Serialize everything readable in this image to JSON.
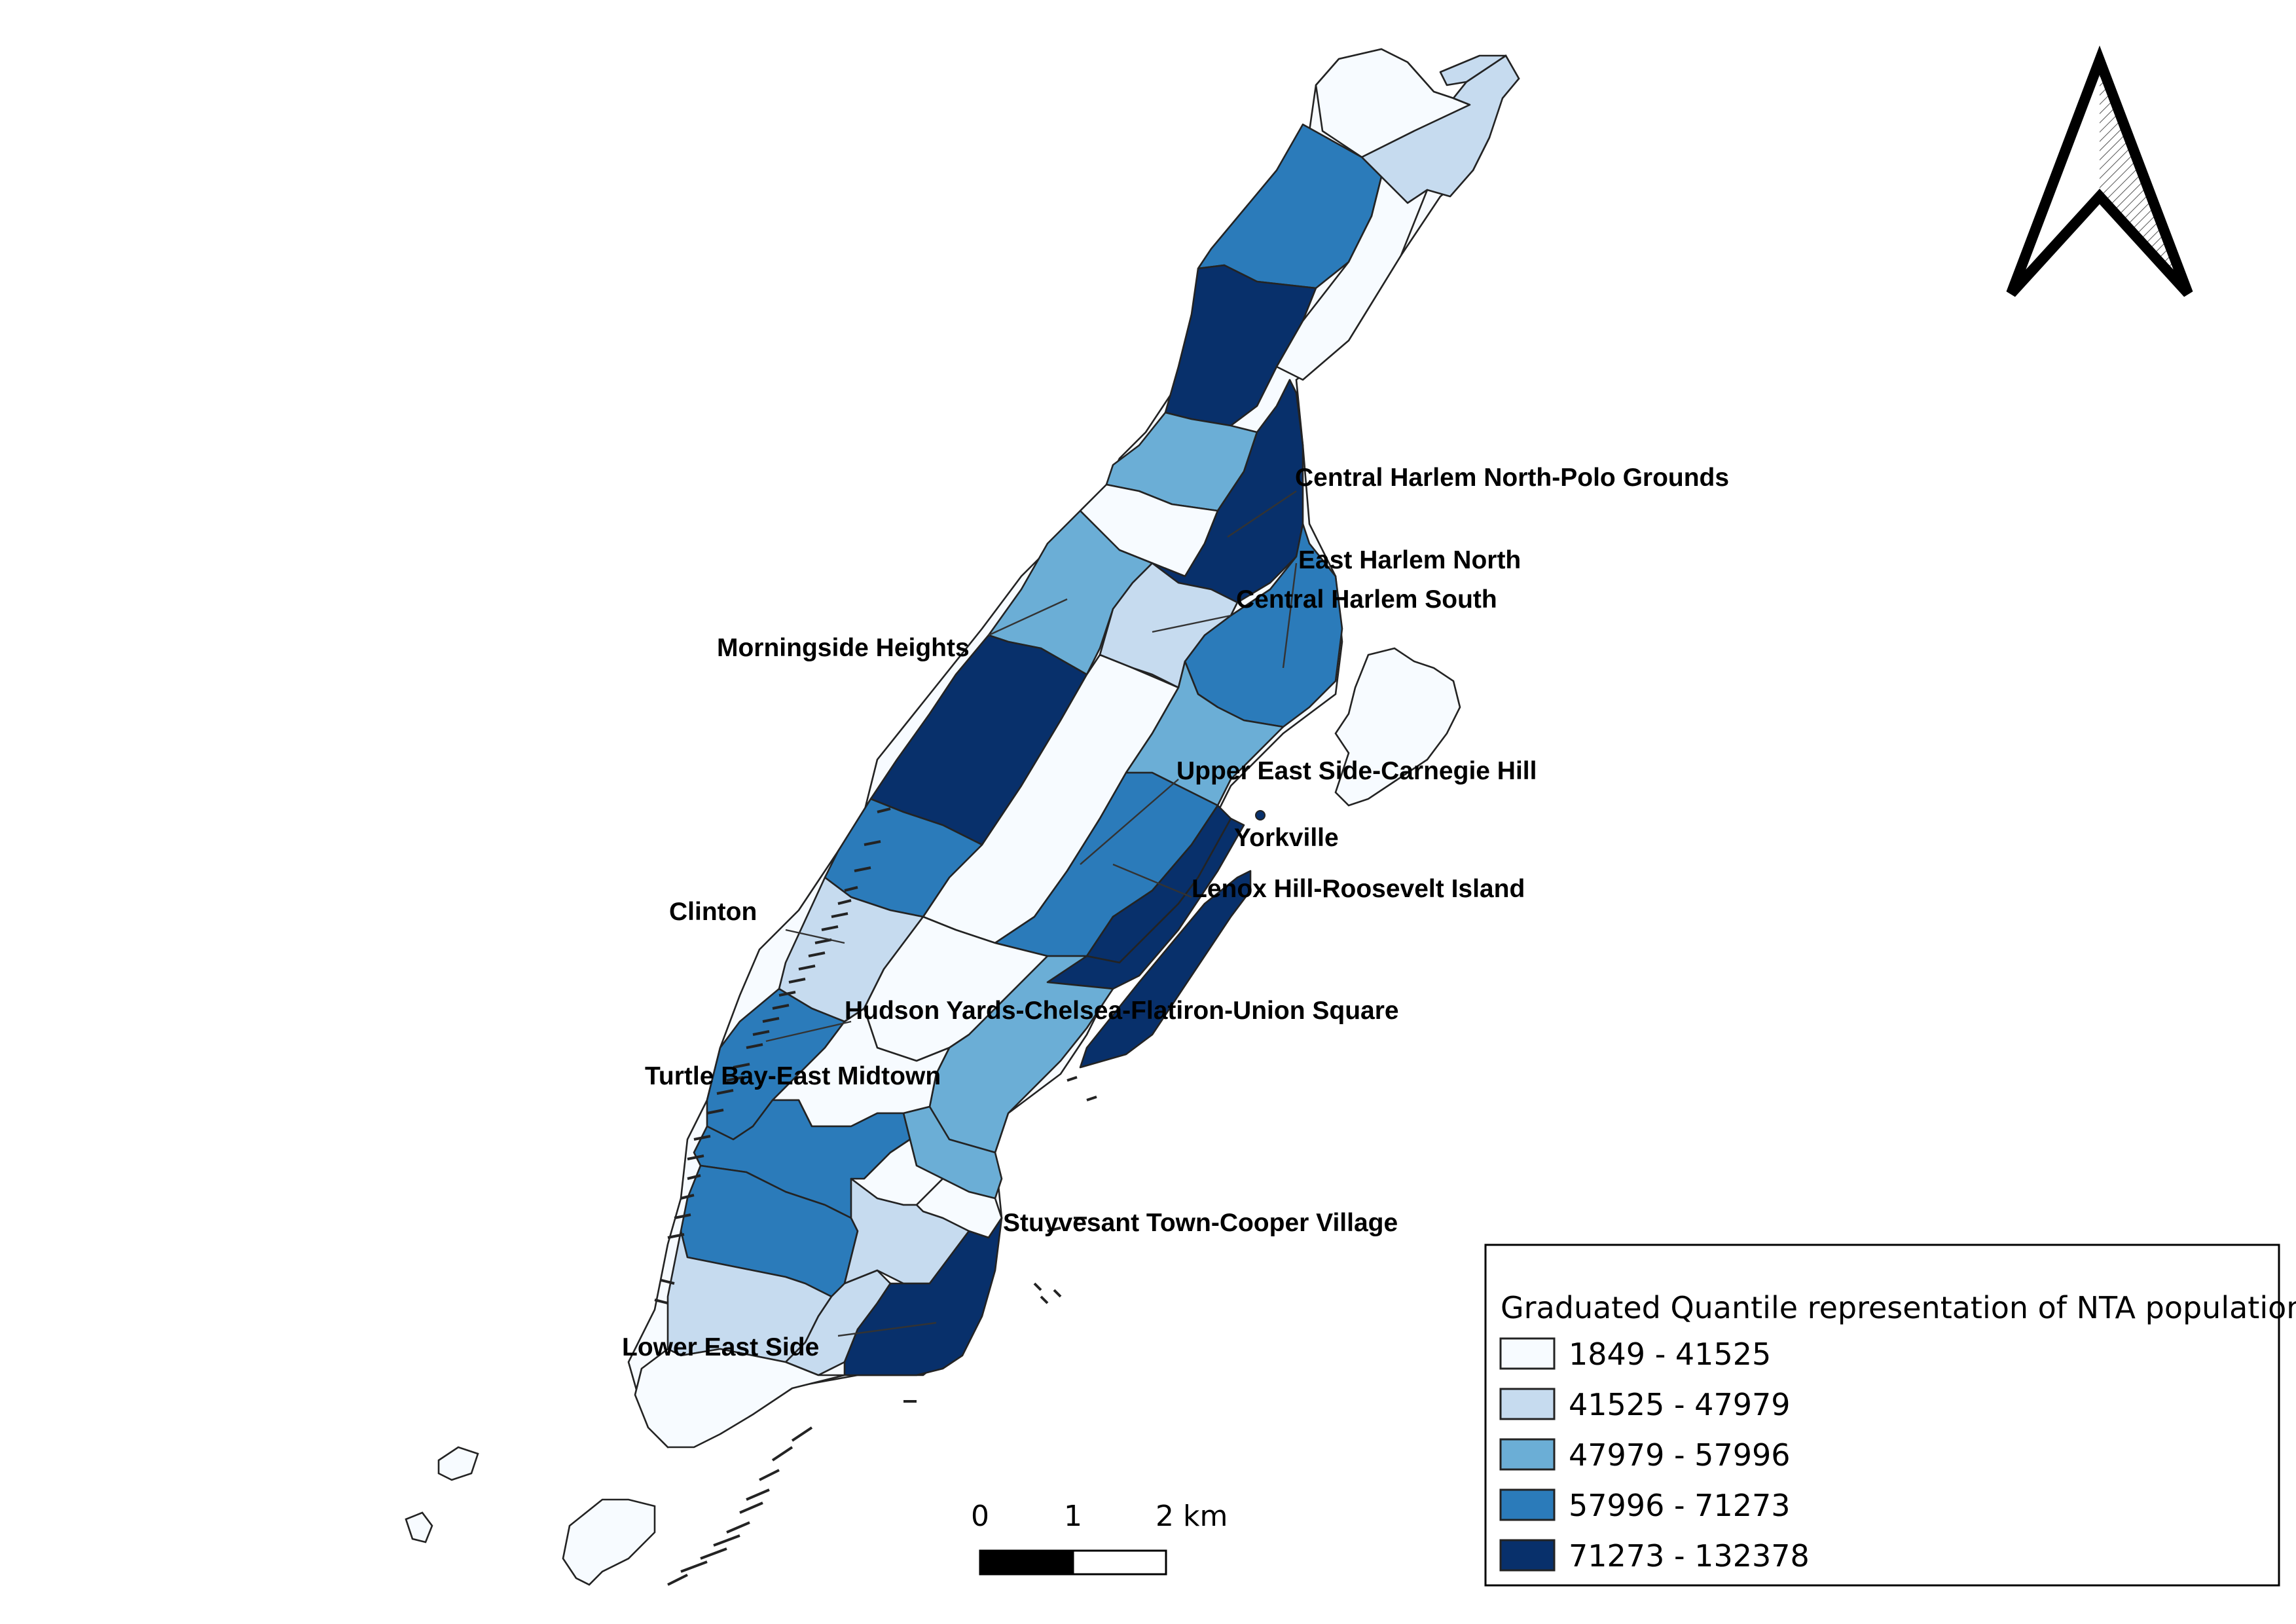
{
  "map": {
    "classes": [
      {
        "label": "1849 - 41525",
        "color": "#f7fbff"
      },
      {
        "label": "41525 - 47979",
        "color": "#c6dbef"
      },
      {
        "label": "47979 - 57996",
        "color": "#6baed6"
      },
      {
        "label": "57996 - 71273",
        "color": "#2b7bba"
      },
      {
        "label": "71273 - 132378",
        "color": "#08306b"
      }
    ],
    "labels": {
      "central_harlem_north": "Central Harlem North-Polo Grounds",
      "east_harlem_north": "East Harlem North",
      "central_harlem_south": "Central Harlem South",
      "morningside_heights": "Morningside Heights",
      "upper_east_side": "Upper East Side-Carnegie Hill",
      "yorkville": "Yorkville",
      "lenox_hill": "Lenox Hill-Roosevelt Island",
      "clinton": "Clinton",
      "hudson_yards": "Hudson Yards-Chelsea-Flatiron-Union Square",
      "turtle_bay": "Turtle Bay-East Midtown",
      "stuyvesant_town": "Stuyvesant Town-Cooper Village",
      "lower_east_side": "Lower East Side"
    }
  },
  "legend": {
    "title": "Graduated Quantile representation of NTA population"
  },
  "scale_bar": {
    "tick_0": "0",
    "tick_1": "1",
    "tick_2": "2 km"
  },
  "north_arrow": {
    "icon": "north-arrow-icon"
  }
}
